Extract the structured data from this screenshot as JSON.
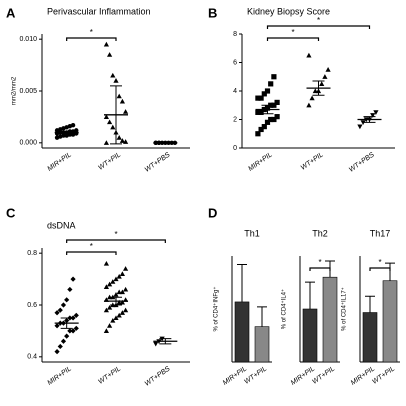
{
  "chart_data": [
    {
      "type": "dotplot",
      "panel": "A",
      "title": "Perivascular Inflammation",
      "ylabel": "mm2/mm2",
      "categories": [
        "MIR+PIL",
        "WT+PIL",
        "WT+PBS"
      ],
      "markers": [
        "circle",
        "triangle",
        "circle"
      ],
      "ylim": [
        -0.0005,
        0.0105
      ],
      "yticks": [
        {
          "value": 0,
          "label": "0.000"
        },
        {
          "value": 0.005,
          "label": "0.005"
        },
        {
          "value": 0.01,
          "label": "0.010"
        }
      ],
      "groups": [
        {
          "values": [
            0.0005,
            0.0006,
            0.0007,
            0.0007,
            0.0008,
            0.0008,
            0.0009,
            0.0009,
            0.001,
            0.001,
            0.001,
            0.0011,
            0.0011,
            0.0012,
            0.0012,
            0.0013,
            0.0014,
            0.0015,
            0.0016,
            0.0017
          ],
          "mean": 0.001,
          "error": 0.0001
        },
        {
          "values": [
            0.0095,
            0.0085,
            0.0065,
            0.006,
            0.0045,
            0.004,
            0.003,
            0.0025,
            0.002,
            0.0015,
            0.001,
            0.0005,
            0.0002,
            0.0001,
            0
          ],
          "mean": 0.0027,
          "error": 0.0028
        },
        {
          "values": [
            0,
            0,
            0,
            0,
            0,
            0,
            0,
            0,
            0
          ],
          "mean": 0,
          "error": 0
        }
      ],
      "brackets": [
        {
          "from": 0,
          "to": 1,
          "label": "*"
        }
      ]
    },
    {
      "type": "dotplot",
      "panel": "B",
      "title": "Kidney Biopsy Score",
      "categories": [
        "MIR+PIL",
        "WT+PIL",
        "WT+PBS"
      ],
      "markers": [
        "square",
        "triangle",
        "down-triangle"
      ],
      "ylim": [
        0,
        8
      ],
      "yticks": [
        0,
        2,
        4,
        6,
        8
      ],
      "groups": [
        {
          "values": [
            1.0,
            1.3,
            1.5,
            1.8,
            2.0,
            2.0,
            2.2,
            2.5,
            2.5,
            2.7,
            2.8,
            3.0,
            3.0,
            3.2,
            3.5,
            3.5,
            3.8,
            4.0,
            4.5,
            5.0
          ],
          "mean": 2.7,
          "error": 0.3
        },
        {
          "values": [
            3.0,
            3.5,
            4.0,
            4.0,
            4.5,
            5.0,
            5.5,
            6.5
          ],
          "mean": 4.2,
          "error": 0.5
        },
        {
          "values": [
            1.5,
            1.8,
            2.0,
            2.0,
            2.3,
            2.5
          ],
          "mean": 2.0,
          "error": 0.2
        }
      ],
      "brackets": [
        {
          "from": 0,
          "to": 1,
          "label": "*"
        },
        {
          "from": 0,
          "to": 2,
          "label": "*"
        }
      ]
    },
    {
      "type": "dotplot",
      "panel": "C",
      "title": "dsDNA",
      "categories": [
        "MIR+PIL",
        "WT+PIL",
        "WT+PBS"
      ],
      "markers": [
        "diamond",
        "triangle",
        "down-triangle"
      ],
      "ylim": [
        0.38,
        0.82
      ],
      "yticks": [
        0.4,
        0.6,
        0.8
      ],
      "groups": [
        {
          "values": [
            0.42,
            0.44,
            0.46,
            0.48,
            0.5,
            0.5,
            0.51,
            0.52,
            0.53,
            0.53,
            0.54,
            0.55,
            0.55,
            0.56,
            0.57,
            0.58,
            0.6,
            0.62,
            0.66,
            0.7
          ],
          "mean": 0.53,
          "error": 0.02
        },
        {
          "values": [
            0.5,
            0.52,
            0.54,
            0.55,
            0.56,
            0.57,
            0.58,
            0.58,
            0.59,
            0.6,
            0.6,
            0.61,
            0.61,
            0.62,
            0.62,
            0.63,
            0.63,
            0.64,
            0.65,
            0.65,
            0.66,
            0.67,
            0.68,
            0.69,
            0.7,
            0.71,
            0.72,
            0.74,
            0.76
          ],
          "mean": 0.615,
          "error": 0.015
        },
        {
          "values": [
            0.45,
            0.46,
            0.47
          ],
          "mean": 0.46,
          "error": 0.01
        }
      ],
      "brackets": [
        {
          "from": 0,
          "to": 1,
          "label": "*"
        },
        {
          "from": 0,
          "to": 2,
          "label": "*"
        }
      ]
    },
    {
      "type": "bar",
      "panel": "D",
      "title": "Th1",
      "ylabel": "% of CD4⁺INFg⁺",
      "categories": [
        "MIR+PIL",
        "WT+PIL"
      ],
      "colors": [
        "#333333",
        "#888888"
      ],
      "ylim": [
        0,
        15
      ],
      "values": [
        8.5,
        5
      ],
      "errors": [
        5.3,
        2.8
      ],
      "brackets": []
    },
    {
      "type": "bar",
      "title": "Th2",
      "ylabel": "% of CD4⁺IL4⁺",
      "categories": [
        "MIR+PIL",
        "WT+PIL"
      ],
      "colors": [
        "#333333",
        "#888888"
      ],
      "ylim": [
        0,
        15
      ],
      "values": [
        7.5,
        12
      ],
      "errors": [
        3.8,
        2.3
      ],
      "brackets": [
        {
          "from": 0,
          "to": 1,
          "label": "*"
        }
      ]
    },
    {
      "type": "bar",
      "title": "Th17",
      "ylabel": "% of CD4⁺IL17⁺",
      "categories": [
        "MIR+PIL",
        "WT+PIL"
      ],
      "colors": [
        "#333333",
        "#888888"
      ],
      "ylim": [
        0,
        15
      ],
      "values": [
        7,
        11.5
      ],
      "errors": [
        2.3,
        2.5
      ],
      "brackets": [
        {
          "from": 0,
          "to": 1,
          "label": "*"
        }
      ]
    }
  ]
}
